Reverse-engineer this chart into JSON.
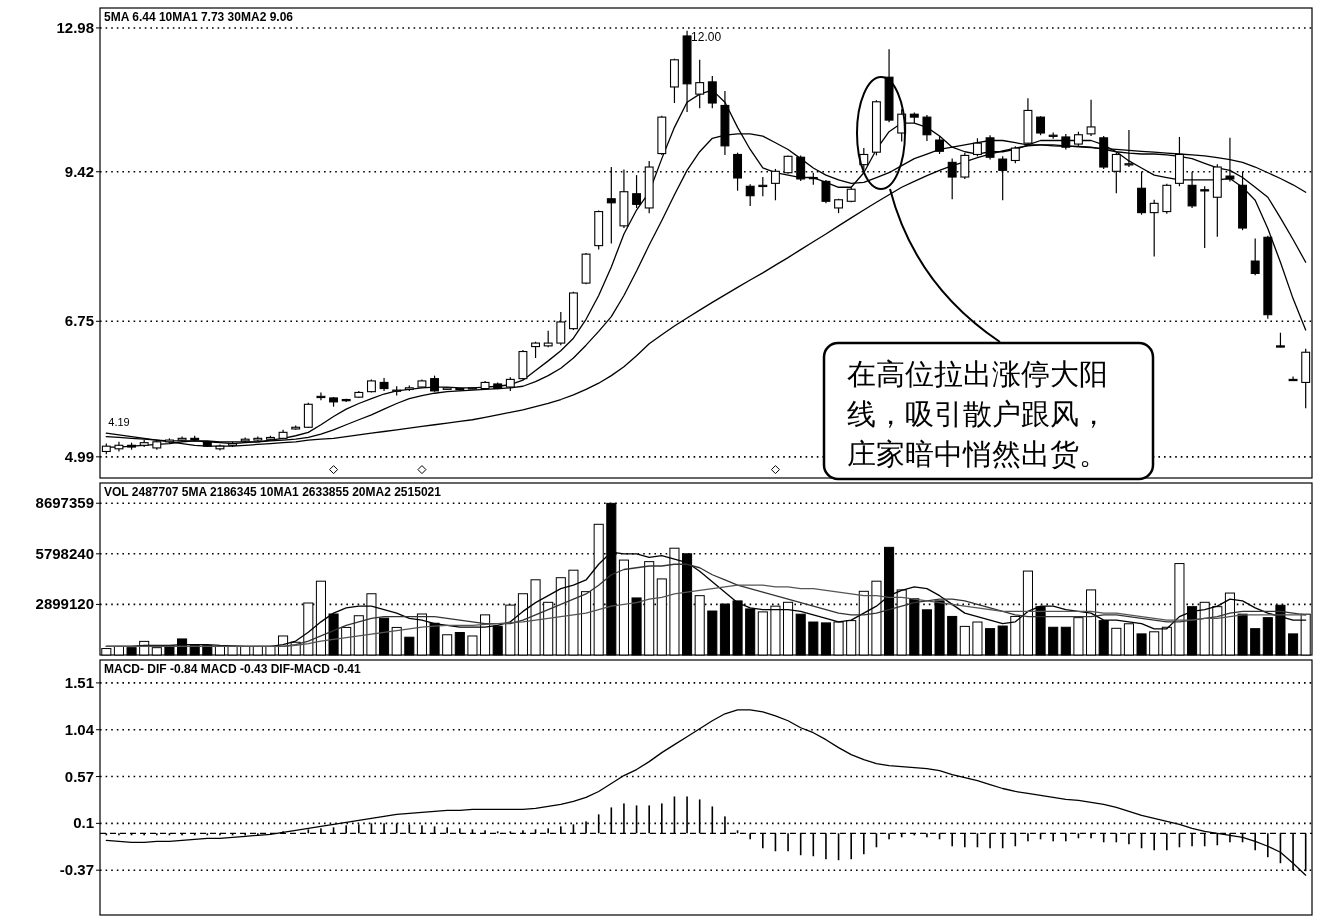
{
  "chart_data": [
    {
      "type": "candlestick",
      "title": "5MA 6.44   10MA1 7.73   30MA2 9.06",
      "log": true,
      "grid": "y",
      "tick_labels": "y",
      "ylim": [
        4.76,
        13.57
      ],
      "yticks": [
        12.98,
        9.42,
        6.75,
        4.99
      ],
      "categories": [
        null,
        null,
        null,
        null,
        null,
        null,
        null,
        null,
        null,
        null,
        null,
        null,
        null,
        null,
        null,
        null,
        null,
        null,
        null,
        null,
        null,
        null,
        null,
        null,
        null,
        null,
        null,
        null,
        null,
        null,
        null,
        null,
        null,
        null,
        null,
        null,
        null,
        null,
        null,
        null,
        null,
        null,
        null,
        null,
        null,
        null,
        null,
        null,
        null,
        null,
        null,
        null,
        null,
        null,
        null,
        null,
        null,
        null,
        null,
        null,
        null,
        null,
        null,
        null,
        null,
        null,
        null,
        null,
        null,
        null,
        null,
        null,
        null,
        null,
        null,
        null,
        null,
        null,
        null,
        null,
        null,
        null,
        null,
        null,
        null,
        null,
        null,
        null,
        null,
        null,
        null,
        null,
        null,
        null,
        null,
        null
      ],
      "ohlc": [
        [
          5.05,
          5.14,
          5.02,
          5.11
        ],
        [
          5.08,
          5.16,
          5.05,
          5.12
        ],
        [
          5.12,
          5.15,
          5.07,
          5.1
        ],
        [
          5.12,
          5.18,
          5.1,
          5.15
        ],
        [
          5.09,
          5.18,
          5.07,
          5.16
        ],
        [
          5.16,
          5.2,
          5.14,
          5.18
        ],
        [
          5.18,
          5.22,
          5.16,
          5.2
        ],
        [
          5.2,
          5.23,
          5.17,
          5.19
        ],
        [
          5.16,
          5.17,
          5.1,
          5.11
        ],
        [
          5.08,
          5.13,
          5.06,
          5.11
        ],
        [
          5.12,
          5.16,
          5.1,
          5.14
        ],
        [
          5.17,
          5.21,
          5.15,
          5.19
        ],
        [
          5.18,
          5.22,
          5.17,
          5.2
        ],
        [
          5.19,
          5.23,
          5.18,
          5.21
        ],
        [
          5.2,
          5.3,
          5.19,
          5.27
        ],
        [
          5.31,
          5.35,
          5.3,
          5.33
        ],
        [
          5.33,
          5.63,
          5.32,
          5.61
        ],
        [
          5.7,
          5.76,
          5.66,
          5.71
        ],
        [
          5.69,
          5.7,
          5.58,
          5.64
        ],
        [
          5.67,
          5.68,
          5.64,
          5.66
        ],
        [
          5.7,
          5.78,
          5.69,
          5.76
        ],
        [
          5.77,
          5.93,
          5.76,
          5.91
        ],
        [
          5.89,
          5.95,
          5.78,
          5.81
        ],
        [
          5.79,
          5.84,
          5.72,
          5.79
        ],
        [
          5.8,
          5.85,
          5.78,
          5.82
        ],
        [
          5.83,
          5.93,
          5.82,
          5.91
        ],
        [
          5.94,
          5.98,
          5.77,
          5.78
        ],
        [
          5.8,
          5.83,
          5.79,
          5.82
        ],
        [
          5.81,
          5.82,
          5.78,
          5.8
        ],
        [
          5.81,
          5.83,
          5.8,
          5.82
        ],
        [
          5.81,
          5.91,
          5.8,
          5.89
        ],
        [
          5.87,
          5.89,
          5.8,
          5.81
        ],
        [
          5.83,
          5.96,
          5.78,
          5.93
        ],
        [
          5.94,
          6.33,
          5.93,
          6.31
        ],
        [
          6.38,
          6.45,
          6.22,
          6.43
        ],
        [
          6.39,
          6.61,
          6.37,
          6.43
        ],
        [
          6.43,
          6.89,
          6.4,
          6.74
        ],
        [
          6.64,
          7.21,
          6.62,
          7.19
        ],
        [
          7.35,
          7.86,
          7.33,
          7.84
        ],
        [
          7.99,
          8.64,
          7.92,
          8.62
        ],
        [
          8.87,
          9.52,
          8.03,
          8.79
        ],
        [
          8.35,
          9.47,
          8.31,
          9.01
        ],
        [
          8.97,
          9.35,
          8.69,
          8.76
        ],
        [
          8.69,
          9.65,
          8.59,
          9.52
        ],
        [
          9.81,
          10.67,
          9.78,
          10.64
        ],
        [
          11.38,
          12.12,
          10.98,
          12.09
        ],
        [
          12.75,
          12.9,
          10.76,
          11.46
        ],
        [
          11.2,
          12.09,
          10.85,
          11.49
        ],
        [
          11.51,
          11.66,
          10.85,
          10.98
        ],
        [
          10.92,
          11.28,
          9.78,
          9.98
        ],
        [
          9.79,
          9.83,
          9.03,
          9.29
        ],
        [
          9.12,
          9.16,
          8.73,
          8.93
        ],
        [
          9.13,
          9.31,
          8.92,
          9.14
        ],
        [
          9.18,
          9.48,
          8.84,
          9.43
        ],
        [
          9.4,
          9.77,
          9.38,
          9.75
        ],
        [
          9.73,
          9.77,
          9.23,
          9.27
        ],
        [
          9.3,
          9.4,
          9.15,
          9.28
        ],
        [
          9.22,
          9.25,
          8.78,
          8.82
        ],
        [
          8.69,
          8.87,
          8.59,
          8.85
        ],
        [
          8.82,
          9.1,
          8.8,
          9.06
        ],
        [
          9.57,
          9.93,
          9.45,
          9.79
        ],
        [
          9.84,
          11.05,
          9.77,
          11.01
        ],
        [
          11.63,
          12.38,
          10.52,
          10.57
        ],
        [
          10.27,
          10.83,
          10.08,
          10.71
        ],
        [
          10.71,
          10.75,
          10.5,
          10.64
        ],
        [
          10.64,
          10.69,
          10.09,
          10.23
        ],
        [
          10.11,
          10.2,
          9.8,
          9.86
        ],
        [
          9.62,
          9.7,
          8.86,
          9.31
        ],
        [
          9.31,
          9.82,
          9.27,
          9.77
        ],
        [
          9.79,
          10.15,
          9.75,
          10.04
        ],
        [
          10.16,
          10.22,
          9.68,
          9.73
        ],
        [
          9.69,
          9.75,
          8.84,
          9.45
        ],
        [
          9.66,
          9.97,
          9.6,
          9.93
        ],
        [
          10.04,
          11.1,
          9.98,
          10.8
        ],
        [
          10.64,
          10.66,
          10.22,
          10.27
        ],
        [
          10.2,
          10.28,
          10.14,
          10.22
        ],
        [
          10.18,
          10.25,
          9.9,
          9.95
        ],
        [
          10.02,
          10.3,
          9.98,
          10.23
        ],
        [
          10.25,
          11.06,
          10.2,
          10.41
        ],
        [
          10.16,
          10.2,
          9.48,
          9.52
        ],
        [
          9.43,
          9.83,
          8.98,
          9.79
        ],
        [
          9.58,
          10.34,
          9.52,
          9.59
        ],
        [
          9.08,
          9.42,
          8.56,
          8.6
        ],
        [
          8.6,
          8.85,
          7.8,
          8.78
        ],
        [
          8.62,
          9.17,
          8.58,
          9.14
        ],
        [
          9.18,
          10.18,
          9.12,
          9.79
        ],
        [
          9.14,
          9.42,
          8.69,
          8.73
        ],
        [
          9.05,
          9.12,
          7.95,
          9.03
        ],
        [
          8.9,
          9.58,
          8.15,
          9.52
        ],
        [
          9.33,
          10.16,
          9.22,
          9.27
        ],
        [
          9.14,
          9.42,
          8.27,
          8.31
        ],
        [
          7.72,
          8.12,
          7.48,
          7.51
        ],
        [
          8.14,
          8.17,
          6.79,
          6.85
        ],
        [
          6.39,
          6.58,
          6.37,
          6.38
        ],
        [
          5.93,
          5.97,
          5.91,
          5.92
        ],
        [
          5.89,
          6.35,
          5.56,
          6.3
        ]
      ],
      "series": [
        {
          "type": "line",
          "color": "#000000",
          "values": [
            5.1,
            5.1,
            5.11,
            5.12,
            5.13,
            5.14,
            5.16,
            5.17,
            5.16,
            5.15,
            5.14,
            5.15,
            5.16,
            5.18,
            5.2,
            5.23,
            5.27,
            5.36,
            5.46,
            5.55,
            5.62,
            5.68,
            5.74,
            5.78,
            5.8,
            5.82,
            5.83,
            5.83,
            5.82,
            5.82,
            5.83,
            5.84,
            5.86,
            5.92,
            6.05,
            6.18,
            6.32,
            6.5,
            6.78,
            7.15,
            7.62,
            8.2,
            8.65,
            9.0,
            9.7,
            10.4,
            11.0,
            11.2,
            11.3,
            11.0,
            10.4,
            9.9,
            9.5,
            9.4,
            9.35,
            9.3,
            9.3,
            9.2,
            9.1,
            9.1,
            9.4,
            9.9,
            10.3,
            10.5,
            10.5,
            10.4,
            10.2,
            9.95,
            9.85,
            9.8,
            9.85,
            9.85,
            9.9,
            10.0,
            10.1,
            10.1,
            10.1,
            10.1,
            10.1,
            10.0,
            9.85,
            9.65,
            9.5,
            9.35,
            9.3,
            9.25,
            9.25,
            9.25,
            9.25,
            9.28,
            9.1,
            8.84,
            8.3,
            7.7,
            7.1,
            6.62
          ]
        },
        {
          "type": "line",
          "color": "#000000",
          "values": [
            5.22,
            5.21,
            5.2,
            5.19,
            5.18,
            5.17,
            5.17,
            5.17,
            5.17,
            5.16,
            5.16,
            5.16,
            5.16,
            5.17,
            5.18,
            5.19,
            5.21,
            5.25,
            5.3,
            5.36,
            5.42,
            5.48,
            5.55,
            5.62,
            5.68,
            5.72,
            5.75,
            5.77,
            5.78,
            5.79,
            5.8,
            5.81,
            5.82,
            5.84,
            5.9,
            5.98,
            6.08,
            6.22,
            6.4,
            6.6,
            6.82,
            7.15,
            7.55,
            8.0,
            8.45,
            8.95,
            9.45,
            9.85,
            10.15,
            10.22,
            10.25,
            10.25,
            10.2,
            10.05,
            9.9,
            9.7,
            9.5,
            9.35,
            9.25,
            9.18,
            9.2,
            9.3,
            9.4,
            9.55,
            9.7,
            9.8,
            9.9,
            9.95,
            10.0,
            10.05,
            10.1,
            10.1,
            10.05,
            10.0,
            10.0,
            9.98,
            9.97,
            9.97,
            9.95,
            9.9,
            9.85,
            9.82,
            9.8,
            9.8,
            9.78,
            9.75,
            9.7,
            9.6,
            9.5,
            9.45,
            9.3,
            9.1,
            8.9,
            8.5,
            8.1,
            7.7
          ]
        },
        {
          "type": "line",
          "color": "#000000",
          "values": [
            5.26,
            5.24,
            5.22,
            5.2,
            5.18,
            5.16,
            5.14,
            5.12,
            5.11,
            5.11,
            5.11,
            5.12,
            5.13,
            5.14,
            5.15,
            5.16,
            5.18,
            5.19,
            5.2,
            5.22,
            5.24,
            5.26,
            5.28,
            5.3,
            5.32,
            5.34,
            5.36,
            5.38,
            5.4,
            5.42,
            5.45,
            5.48,
            5.51,
            5.54,
            5.58,
            5.62,
            5.67,
            5.73,
            5.8,
            5.88,
            5.98,
            6.1,
            6.25,
            6.42,
            6.55,
            6.68,
            6.8,
            6.92,
            7.04,
            7.16,
            7.28,
            7.4,
            7.52,
            7.65,
            7.78,
            7.92,
            8.06,
            8.2,
            8.35,
            8.5,
            8.65,
            8.8,
            8.95,
            9.1,
            9.22,
            9.34,
            9.45,
            9.55,
            9.63,
            9.72,
            9.8,
            9.87,
            9.93,
            9.98,
            10.0,
            10.0,
            9.98,
            9.96,
            9.94,
            9.92,
            9.9,
            9.88,
            9.86,
            9.84,
            9.82,
            9.8,
            9.78,
            9.76,
            9.72,
            9.68,
            9.62,
            9.52,
            9.4,
            9.28,
            9.15,
            9.0
          ]
        },
        {
          "type": "scatter",
          "marker": "diamond",
          "color": "#ffffff",
          "values": [
            null,
            null,
            null,
            null,
            null,
            null,
            null,
            null,
            null,
            null,
            null,
            null,
            null,
            null,
            null,
            null,
            null,
            null,
            4.85,
            null,
            null,
            null,
            null,
            null,
            null,
            4.85,
            null,
            null,
            null,
            null,
            null,
            null,
            null,
            null,
            null,
            null,
            null,
            null,
            null,
            null,
            null,
            null,
            null,
            null,
            null,
            null,
            null,
            null,
            null,
            null,
            null,
            null,
            null,
            4.85,
            null,
            null,
            null,
            null,
            null,
            null,
            null,
            null,
            null,
            null,
            null,
            null,
            null,
            null,
            null,
            null,
            null,
            null,
            null,
            null,
            null,
            null,
            null,
            null,
            null,
            null,
            null,
            null,
            null,
            null,
            null,
            null,
            null,
            null,
            null,
            null,
            null,
            null,
            null,
            null,
            null,
            null
          ]
        }
      ],
      "annotations": [
        "12.00",
        "4.19",
        "在高位拉出涨停大阳线，吸引散户跟风，庄家暗中悄然出货。"
      ]
    },
    {
      "type": "bar",
      "title": "VOL 2487707   5MA 2186345   10MA1 2633855   20MA2 2515021",
      "grid": "y",
      "tick_labels": "y",
      "ylim": [
        0,
        9857000
      ],
      "yticks": [
        8697359,
        5798240,
        2899120
      ],
      "categories": [
        null,
        null,
        null,
        null,
        null,
        null,
        null,
        null,
        null,
        null,
        null,
        null,
        null,
        null,
        null,
        null,
        null,
        null,
        null,
        null,
        null,
        null,
        null,
        null,
        null,
        null,
        null,
        null,
        null,
        null,
        null,
        null,
        null,
        null,
        null,
        null,
        null,
        null,
        null,
        null,
        null,
        null,
        null,
        null,
        null,
        null,
        null,
        null,
        null,
        null,
        null,
        null,
        null,
        null,
        null,
        null,
        null,
        null,
        null,
        null,
        null,
        null,
        null,
        null,
        null,
        null,
        null,
        null,
        null,
        null,
        null,
        null,
        null,
        null,
        null,
        null,
        null,
        null,
        null,
        null,
        null,
        null,
        null,
        null,
        null,
        null,
        null,
        null,
        null,
        null,
        null,
        null,
        null,
        null,
        null,
        null
      ],
      "series": [
        {
          "values": [
            370000,
            490000,
            420000,
            780000,
            420000,
            540000,
            920000,
            540000,
            540000,
            490000,
            490000,
            490000,
            490000,
            490000,
            1090000,
            730000,
            2980000,
            4230000,
            2350000,
            1580000,
            2250000,
            3510000,
            2110000,
            1580000,
            1020000,
            2350000,
            1820000,
            1160000,
            1290000,
            1090000,
            2300000,
            1650000,
            2860000,
            3510000,
            4310000,
            3020000,
            4430000,
            4860000,
            3630000,
            7490000,
            8690000,
            5440000,
            3270000,
            5350000,
            4360000,
            6120000,
            5800000,
            3400000,
            2520000,
            2920000,
            3100000,
            2640000,
            2470000,
            2800000,
            3020000,
            2340000,
            1890000,
            1840000,
            1890000,
            1970000,
            3650000,
            4230000,
            6170000,
            3730000,
            3220000,
            2590000,
            3100000,
            2210000,
            1640000,
            1890000,
            1510000,
            1660000,
            2210000,
            4810000,
            2770000,
            1590000,
            1590000,
            2140000,
            3730000,
            1970000,
            1530000,
            1790000,
            1210000,
            1330000,
            1590000,
            5240000,
            2770000,
            3020000,
            2770000,
            3550000,
            2340000,
            1510000,
            2140000,
            2850000,
            1210000,
            2340000
          ],
          "colors": [
            "#ffffff",
            "#ffffff",
            "#000000",
            "#ffffff",
            "#ffffff",
            "#000000",
            "#000000",
            "#000000",
            "#000000",
            "#ffffff",
            "#ffffff",
            "#ffffff",
            "#ffffff",
            "#ffffff",
            "#ffffff",
            "#ffffff",
            "#ffffff",
            "#ffffff",
            "#000000",
            "#ffffff",
            "#ffffff",
            "#ffffff",
            "#000000",
            "#ffffff",
            "#000000",
            "#ffffff",
            "#000000",
            "#ffffff",
            "#000000",
            "#ffffff",
            "#ffffff",
            "#000000",
            "#ffffff",
            "#ffffff",
            "#ffffff",
            "#ffffff",
            "#ffffff",
            "#ffffff",
            "#ffffff",
            "#ffffff",
            "#000000",
            "#ffffff",
            "#000000",
            "#ffffff",
            "#ffffff",
            "#ffffff",
            "#000000",
            "#ffffff",
            "#000000",
            "#000000",
            "#000000",
            "#000000",
            "#ffffff",
            "#ffffff",
            "#ffffff",
            "#000000",
            "#000000",
            "#000000",
            "#ffffff",
            "#ffffff",
            "#ffffff",
            "#ffffff",
            "#000000",
            "#ffffff",
            "#000000",
            "#000000",
            "#000000",
            "#000000",
            "#ffffff",
            "#ffffff",
            "#000000",
            "#000000",
            "#ffffff",
            "#ffffff",
            "#000000",
            "#000000",
            "#000000",
            "#ffffff",
            "#ffffff",
            "#000000",
            "#ffffff",
            "#ffffff",
            "#000000",
            "#ffffff",
            "#ffffff",
            "#ffffff",
            "#000000",
            "#ffffff",
            "#ffffff",
            "#ffffff",
            "#000000",
            "#000000",
            "#000000",
            "#000000",
            "#000000",
            "#ffffff"
          ]
        },
        {
          "type": "line",
          "color": "#000000",
          "values": [
            500000,
            500000,
            500000,
            550000,
            550000,
            550000,
            600000,
            600000,
            600000,
            550000,
            520000,
            500000,
            500000,
            500000,
            600000,
            800000,
            1300000,
            1900000,
            2400000,
            2700000,
            2800000,
            2800000,
            2600000,
            2400000,
            2100000,
            2000000,
            1800000,
            1700000,
            1600000,
            1600000,
            1600000,
            1700000,
            1900000,
            2500000,
            3000000,
            3400000,
            3800000,
            4000000,
            4300000,
            5200000,
            5900000,
            5800000,
            5800000,
            5600000,
            5700000,
            5500000,
            5300000,
            4800000,
            4200000,
            3600000,
            3000000,
            2700000,
            2600000,
            2600000,
            2600000,
            2500000,
            2300000,
            2100000,
            1900000,
            2000000,
            2400000,
            2800000,
            3400000,
            3700000,
            3900000,
            3800000,
            3400000,
            2900000,
            2400000,
            2200000,
            2000000,
            1800000,
            1900000,
            2500000,
            2800000,
            2800000,
            2600000,
            2500000,
            2400000,
            2000000,
            2000000,
            1900000,
            1800000,
            1500000,
            1500000,
            2200000,
            2500000,
            2600000,
            2800000,
            3200000,
            3100000,
            2700000,
            2400000,
            2200000,
            2000000,
            2000000
          ]
        },
        {
          "type": "line",
          "color": "#333333",
          "values": [
            500000,
            500000,
            500000,
            500000,
            500000,
            500000,
            500000,
            500000,
            500000,
            500000,
            500000,
            500000,
            500000,
            500000,
            500000,
            600000,
            800000,
            1100000,
            1400000,
            1700000,
            1900000,
            2100000,
            2200000,
            2200000,
            2200000,
            2200000,
            2200000,
            2100000,
            2000000,
            1900000,
            1800000,
            1800000,
            1800000,
            2000000,
            2300000,
            2600000,
            2900000,
            3200000,
            3500000,
            4000000,
            4600000,
            4900000,
            5000000,
            5100000,
            5100000,
            5200000,
            5200000,
            5000000,
            4600000,
            4300000,
            4000000,
            3800000,
            3600000,
            3400000,
            3200000,
            3000000,
            2800000,
            2600000,
            2400000,
            2300000,
            2300000,
            2400000,
            2600000,
            2800000,
            3000000,
            3100000,
            3200000,
            3200000,
            3100000,
            2900000,
            2700000,
            2500000,
            2300000,
            2200000,
            2200000,
            2200000,
            2200000,
            2200000,
            2200000,
            2300000,
            2300000,
            2200000,
            2100000,
            2000000,
            1900000,
            1900000,
            2000000,
            2100000,
            2200000,
            2400000,
            2500000,
            2500000,
            2500000,
            2500000,
            2400000,
            2300000
          ]
        },
        {
          "type": "line",
          "color": "#555555",
          "values": [
            500000,
            500000,
            500000,
            500000,
            500000,
            500000,
            500000,
            500000,
            500000,
            500000,
            500000,
            500000,
            500000,
            500000,
            500000,
            550000,
            650000,
            800000,
            900000,
            1000000,
            1100000,
            1200000,
            1300000,
            1400000,
            1500000,
            1600000,
            1650000,
            1700000,
            1700000,
            1700000,
            1750000,
            1800000,
            1850000,
            1900000,
            2000000,
            2100000,
            2200000,
            2300000,
            2400000,
            2600000,
            2800000,
            2900000,
            3000000,
            3200000,
            3300000,
            3500000,
            3600000,
            3700000,
            3800000,
            3900000,
            4000000,
            4000000,
            4000000,
            3900000,
            3900000,
            3800000,
            3800000,
            3700000,
            3600000,
            3500000,
            3400000,
            3400000,
            3300000,
            3300000,
            3200000,
            3100000,
            3000000,
            2900000,
            2800000,
            2700000,
            2600000,
            2500000,
            2500000,
            2500000,
            2500000,
            2500000,
            2500000,
            2500000,
            2500000,
            2400000,
            2400000,
            2300000,
            2200000,
            2100000,
            2000000,
            2000000,
            2000000,
            2100000,
            2100000,
            2200000,
            2300000,
            2300000,
            2300000,
            2300000,
            2300000,
            2300000
          ]
        }
      ]
    },
    {
      "type": "bar",
      "title": "MACD- DIF -0.84  MACD -0.43  DIF-MACD -0.41",
      "grid": "y",
      "tick_labels": "y",
      "ylim": [
        -0.82,
        1.74
      ],
      "yticks": [
        1.51,
        1.04,
        0.57,
        0.1,
        -0.37
      ],
      "ref_lines": [
        {
          "axis": "y",
          "value": 0,
          "line_style": "dashed"
        }
      ],
      "categories": [
        null,
        null,
        null,
        null,
        null,
        null,
        null,
        null,
        null,
        null,
        null,
        null,
        null,
        null,
        null,
        null,
        null,
        null,
        null,
        null,
        null,
        null,
        null,
        null,
        null,
        null,
        null,
        null,
        null,
        null,
        null,
        null,
        null,
        null,
        null,
        null,
        null,
        null,
        null,
        null,
        null,
        null,
        null,
        null,
        null,
        null,
        null,
        null,
        null,
        null,
        null,
        null,
        null,
        null,
        null,
        null,
        null,
        null,
        null,
        null,
        null,
        null,
        null,
        null,
        null,
        null,
        null,
        null,
        null,
        null,
        null,
        null,
        null,
        null,
        null,
        null,
        null,
        null,
        null,
        null,
        null,
        null,
        null,
        null,
        null,
        null,
        null,
        null,
        null,
        null,
        null,
        null,
        null,
        null,
        null,
        null
      ],
      "series": [
        {
          "color": "#000000",
          "values": [
            -0.02,
            -0.02,
            -0.02,
            -0.02,
            -0.02,
            -0.02,
            -0.02,
            -0.02,
            -0.02,
            -0.02,
            -0.02,
            -0.02,
            -0.02,
            null,
            0.02,
            null,
            0.04,
            0.05,
            0.06,
            0.08,
            0.09,
            0.1,
            0.1,
            0.1,
            0.09,
            0.08,
            0.07,
            0.06,
            0.05,
            0.04,
            0.03,
            0.02,
            0.02,
            0.03,
            0.04,
            0.05,
            0.07,
            0.09,
            0.12,
            0.19,
            0.26,
            0.3,
            0.28,
            0.28,
            0.3,
            0.37,
            0.37,
            0.34,
            0.27,
            0.17,
            0.03,
            -0.06,
            -0.15,
            -0.18,
            -0.18,
            -0.22,
            -0.23,
            -0.26,
            -0.27,
            -0.26,
            -0.21,
            -0.14,
            -0.06,
            -0.04,
            -0.02,
            -0.04,
            -0.06,
            -0.13,
            -0.14,
            -0.14,
            -0.15,
            -0.15,
            -0.13,
            -0.08,
            -0.06,
            -0.08,
            -0.08,
            -0.05,
            -0.05,
            -0.09,
            -0.09,
            -0.11,
            -0.15,
            -0.17,
            -0.17,
            -0.14,
            -0.13,
            -0.13,
            -0.12,
            -0.09,
            -0.09,
            -0.17,
            -0.24,
            -0.3,
            -0.37,
            -0.38
          ]
        },
        {
          "type": "line",
          "color": "#000000",
          "values": [
            -0.07,
            -0.08,
            -0.09,
            -0.09,
            -0.08,
            -0.08,
            -0.07,
            -0.06,
            -0.05,
            -0.05,
            -0.04,
            -0.03,
            -0.02,
            -0.01,
            0.01,
            0.03,
            0.05,
            0.07,
            0.09,
            0.11,
            0.13,
            0.15,
            0.17,
            0.19,
            0.2,
            0.21,
            0.22,
            0.23,
            0.23,
            0.24,
            0.24,
            0.24,
            0.24,
            0.24,
            0.25,
            0.27,
            0.29,
            0.32,
            0.36,
            0.42,
            0.5,
            0.58,
            0.64,
            0.72,
            0.81,
            0.89,
            0.97,
            1.05,
            1.13,
            1.2,
            1.24,
            1.24,
            1.22,
            1.18,
            1.13,
            1.06,
            1.01,
            0.94,
            0.86,
            0.79,
            0.74,
            0.7,
            0.68,
            0.67,
            0.66,
            0.65,
            0.63,
            0.59,
            0.56,
            0.53,
            0.49,
            0.45,
            0.42,
            0.4,
            0.38,
            0.36,
            0.34,
            0.33,
            0.31,
            0.29,
            0.26,
            0.22,
            0.18,
            0.15,
            0.12,
            0.09,
            0.05,
            0.02,
            0.0,
            -0.02,
            -0.04,
            -0.08,
            -0.13,
            -0.19,
            -0.3,
            -0.42
          ]
        }
      ]
    }
  ]
}
